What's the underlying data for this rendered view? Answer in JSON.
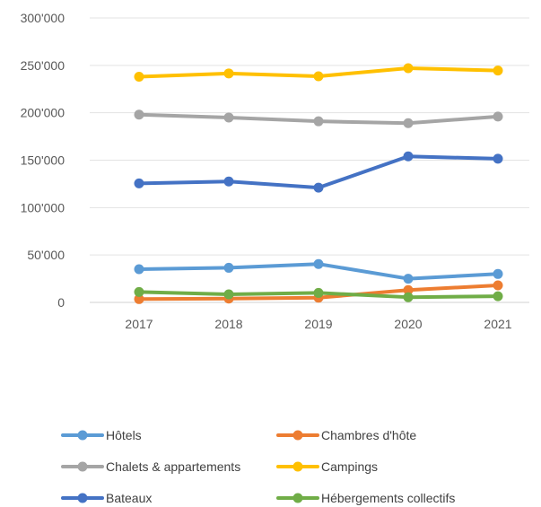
{
  "chart_data": {
    "type": "line",
    "title": "",
    "xlabel": "",
    "ylabel": "",
    "categories": [
      "2017",
      "2018",
      "2019",
      "2020",
      "2021"
    ],
    "ylim": [
      0,
      300000
    ],
    "y_ticks": [
      {
        "value": 0,
        "label": "0"
      },
      {
        "value": 50000,
        "label": "50'000"
      },
      {
        "value": 100000,
        "label": "100'000"
      },
      {
        "value": 150000,
        "label": "150'000"
      },
      {
        "value": 200000,
        "label": "200'000"
      },
      {
        "value": 250000,
        "label": "250'000"
      },
      {
        "value": 300000,
        "label": "300'000"
      }
    ],
    "grid": true,
    "legend_position": "bottom",
    "series": [
      {
        "name": "Hôtels",
        "color": "#5B9BD5",
        "values": [
          35000,
          36500,
          40500,
          25000,
          30000
        ]
      },
      {
        "name": "Chambres d'hôte",
        "color": "#ED7D31",
        "values": [
          3500,
          4000,
          5000,
          13000,
          18000
        ]
      },
      {
        "name": "Chalets & appartements",
        "color": "#A5A5A5",
        "values": [
          198000,
          195000,
          191000,
          189000,
          196000
        ]
      },
      {
        "name": "Campings",
        "color": "#FFC000",
        "values": [
          238000,
          241500,
          238500,
          247000,
          244500
        ]
      },
      {
        "name": "Bateaux",
        "color": "#4472C4",
        "values": [
          125500,
          127500,
          121000,
          154000,
          151500
        ]
      },
      {
        "name": "Hébergements collectifs",
        "color": "#70AD47",
        "values": [
          11000,
          8500,
          10000,
          5500,
          6500
        ]
      }
    ]
  }
}
